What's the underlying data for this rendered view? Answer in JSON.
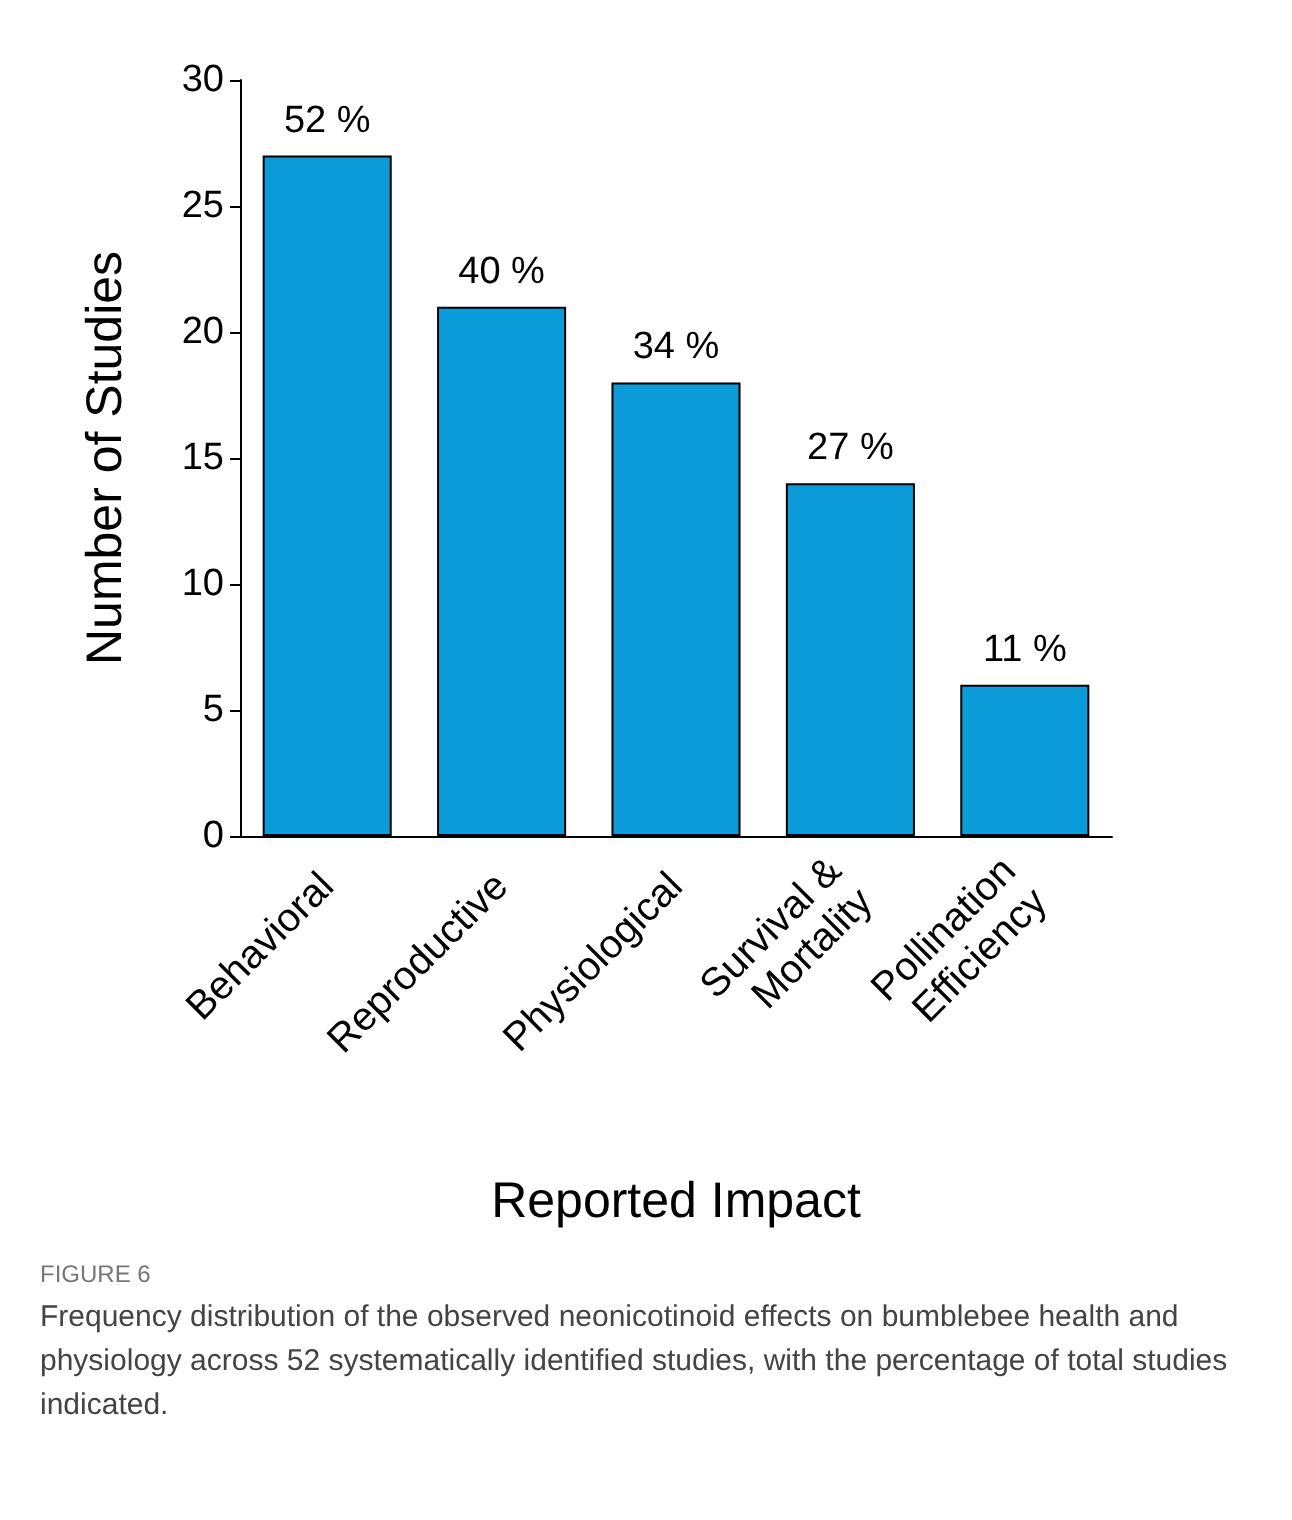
{
  "chart_data": {
    "type": "bar",
    "categories": [
      "Behavioral",
      "Reproductive",
      "Physiological",
      "Survival &\nMortality",
      "Pollination\nEfficiency"
    ],
    "values": [
      27,
      21,
      18,
      14,
      6
    ],
    "color": "#0c9bd9",
    "xlabel": "Reported Impact",
    "ylabel": "Number of Studies",
    "ylim": [
      0,
      30
    ],
    "yticks": [
      0,
      5,
      10,
      15,
      20,
      25,
      30
    ],
    "grid": false,
    "annotations": [
      {
        "text": "52 %",
        "x": "Behavioral",
        "y": 27
      },
      {
        "text": "40 %",
        "x": "Reproductive",
        "y": 21
      },
      {
        "text": "34 %",
        "x": "Physiological",
        "y": 18
      },
      {
        "text": "27 %",
        "x": "Survival &\nMortality",
        "y": 14
      },
      {
        "text": "11 %",
        "x": "Pollination\nEfficiency",
        "y": 6
      },
      "FIGURE 6",
      "Frequency distribution of the observed neonicotinoid effects on bumblebee health and physiology across 52 systematically identified studies, with the percentage of total studies indicated."
    ]
  }
}
